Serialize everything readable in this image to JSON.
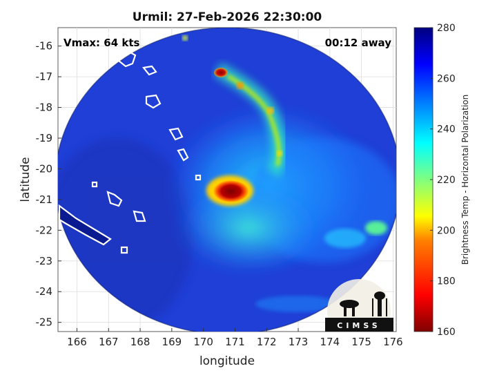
{
  "title": "Urmil: 27-Feb-2026 22:30:00",
  "annotations": {
    "vmax": "Vmax: 64 kts",
    "time_away": "00:12 away"
  },
  "axes": {
    "xlabel": "longitude",
    "ylabel": "latitude",
    "xticks": [
      "166",
      "167",
      "168",
      "169",
      "170",
      "171",
      "172",
      "173",
      "174",
      "175",
      "176"
    ],
    "yticks": [
      "-16",
      "-17",
      "-18",
      "-19",
      "-20",
      "-21",
      "-22",
      "-23",
      "-24",
      "-25"
    ],
    "xlim": [
      165.4,
      176.1
    ],
    "ylim": [
      -25.3,
      -15.4
    ]
  },
  "colorbar": {
    "label": "Brightness Temp - Horizontal Polarization",
    "ticks": [
      "280",
      "260",
      "240",
      "220",
      "200",
      "180",
      "160"
    ],
    "range": [
      160,
      280
    ],
    "colormap": "jet"
  },
  "logo": {
    "text": "CIMSS"
  },
  "colors": {
    "background_cold": "#1f3fd6",
    "eyewall": "#8b0000",
    "coastline": "#ffffff"
  }
}
